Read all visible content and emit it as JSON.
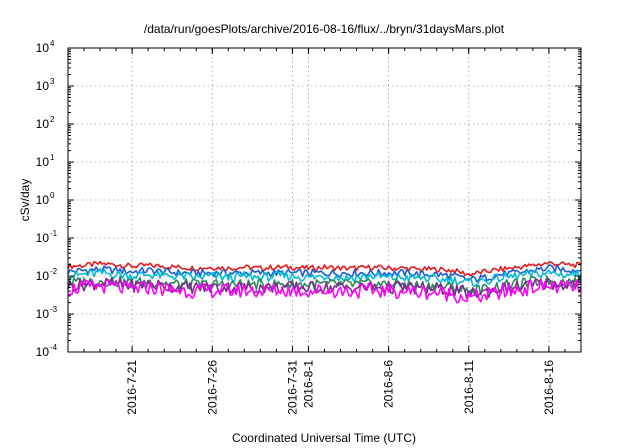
{
  "chart_data": {
    "type": "line",
    "title": "/data/run/goesPlots/archive/2016-08-16/flux/../bryn/31daysMars.plot",
    "xlabel": "Coordinated Universal Time (UTC)",
    "ylabel": "cSv/day",
    "yscale": "log",
    "ylim": [
      0.0001,
      10000
    ],
    "y_ticks": [
      {
        "exp": "-4",
        "value": 0.0001
      },
      {
        "exp": "-3",
        "value": 0.001
      },
      {
        "exp": "-2",
        "value": 0.01
      },
      {
        "exp": "-1",
        "value": 0.1
      },
      {
        "exp": "0",
        "value": 1
      },
      {
        "exp": "1",
        "value": 10
      },
      {
        "exp": "2",
        "value": 100
      },
      {
        "exp": "3",
        "value": 1000
      },
      {
        "exp": "4",
        "value": 10000
      }
    ],
    "y_tick_base": "10",
    "xlim": [
      "2016-07-17",
      "2016-08-18"
    ],
    "x_ticks": [
      {
        "date": "2016-07-21",
        "label": "2016-7-21"
      },
      {
        "date": "2016-07-26",
        "label": "2016-7-26"
      },
      {
        "date": "2016-07-31",
        "label": "2016-7-31"
      },
      {
        "date": "2016-08-01",
        "label": "2016-8-1"
      },
      {
        "date": "2016-08-06",
        "label": "2016-8-6"
      },
      {
        "date": "2016-08-11",
        "label": "2016-8-11"
      },
      {
        "date": "2016-08-16",
        "label": "2016-8-16"
      }
    ],
    "grid": true,
    "x": [
      "2016-07-17",
      "2016-07-18",
      "2016-07-19",
      "2016-07-20",
      "2016-07-21",
      "2016-07-22",
      "2016-07-23",
      "2016-07-24",
      "2016-07-25",
      "2016-07-26",
      "2016-07-27",
      "2016-07-28",
      "2016-07-29",
      "2016-07-30",
      "2016-07-31",
      "2016-08-01",
      "2016-08-02",
      "2016-08-03",
      "2016-08-04",
      "2016-08-05",
      "2016-08-06",
      "2016-08-07",
      "2016-08-08",
      "2016-08-09",
      "2016-08-10",
      "2016-08-11",
      "2016-08-12",
      "2016-08-13",
      "2016-08-14",
      "2016-08-15",
      "2016-08-16",
      "2016-08-17",
      "2016-08-18"
    ],
    "series": [
      {
        "color": "#e41a1c",
        "values": [
          0.018,
          0.019,
          0.021,
          0.02,
          0.018,
          0.019,
          0.018,
          0.017,
          0.016,
          0.017,
          0.016,
          0.017,
          0.016,
          0.017,
          0.017,
          0.016,
          0.017,
          0.016,
          0.016,
          0.017,
          0.016,
          0.016,
          0.015,
          0.015,
          0.014,
          0.011,
          0.013,
          0.015,
          0.017,
          0.019,
          0.022,
          0.02,
          0.019
        ]
      },
      {
        "color": "#1e5bd8",
        "values": [
          0.013,
          0.014,
          0.015,
          0.014,
          0.013,
          0.014,
          0.013,
          0.012,
          0.012,
          0.012,
          0.012,
          0.012,
          0.012,
          0.012,
          0.012,
          0.012,
          0.012,
          0.012,
          0.012,
          0.012,
          0.012,
          0.012,
          0.011,
          0.011,
          0.01,
          0.008,
          0.009,
          0.011,
          0.012,
          0.014,
          0.016,
          0.015,
          0.014
        ]
      },
      {
        "color": "#00bcd4",
        "values": [
          0.01,
          0.011,
          0.012,
          0.011,
          0.01,
          0.011,
          0.01,
          0.01,
          0.009,
          0.01,
          0.009,
          0.01,
          0.009,
          0.01,
          0.01,
          0.009,
          0.01,
          0.009,
          0.009,
          0.01,
          0.009,
          0.009,
          0.009,
          0.008,
          0.008,
          0.0065,
          0.0075,
          0.009,
          0.01,
          0.011,
          0.012,
          0.011,
          0.011
        ]
      },
      {
        "color": "#2e8b57",
        "values": [
          0.0065,
          0.007,
          0.0075,
          0.007,
          0.0065,
          0.007,
          0.0065,
          0.006,
          0.006,
          0.006,
          0.006,
          0.006,
          0.006,
          0.006,
          0.006,
          0.006,
          0.006,
          0.006,
          0.006,
          0.006,
          0.006,
          0.006,
          0.0055,
          0.0055,
          0.005,
          0.004,
          0.0045,
          0.0055,
          0.006,
          0.007,
          0.0075,
          0.007,
          0.007
        ]
      },
      {
        "color": "#7b2d8e",
        "values": [
          0.0055,
          0.006,
          0.0065,
          0.006,
          0.0055,
          0.006,
          0.0055,
          0.005,
          0.005,
          0.005,
          0.005,
          0.005,
          0.005,
          0.005,
          0.005,
          0.005,
          0.005,
          0.005,
          0.005,
          0.005,
          0.005,
          0.005,
          0.0046,
          0.0046,
          0.0042,
          0.0034,
          0.0038,
          0.0046,
          0.005,
          0.006,
          0.0065,
          0.006,
          0.006
        ]
      },
      {
        "color": "#ff00ff",
        "values": [
          0.0045,
          0.005,
          0.0055,
          0.005,
          0.0045,
          0.005,
          0.0045,
          0.0042,
          0.004,
          0.0042,
          0.004,
          0.0042,
          0.004,
          0.0042,
          0.0042,
          0.004,
          0.0042,
          0.004,
          0.004,
          0.0042,
          0.004,
          0.004,
          0.0037,
          0.0037,
          0.0033,
          0.0026,
          0.003,
          0.0037,
          0.0042,
          0.005,
          0.0055,
          0.005,
          0.005
        ]
      }
    ]
  }
}
